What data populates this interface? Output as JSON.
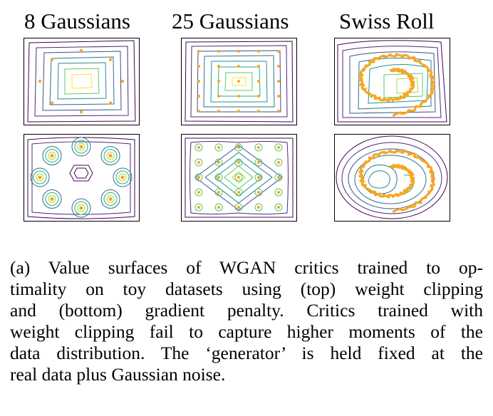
{
  "columns": [
    {
      "title": "8 Gaussians"
    },
    {
      "title": "25 Gaussians"
    },
    {
      "title": "Swiss Roll"
    }
  ],
  "rows": [
    "weight clipping",
    "gradient penalty"
  ],
  "caption": {
    "line1": "(a)  Value surfaces of WGAN critics trained to op-",
    "line2": "timality on toy datasets using (top) weight clipping",
    "line3": "and (bottom) gradient penalty.  Critics trained with",
    "line4": "weight clipping fail to capture higher moments of the",
    "line5": "data distribution. The ‘generator’ is held fixed at the",
    "line6": "real data plus Gaussian noise."
  },
  "colors": {
    "contour_levels": [
      "#440154",
      "#472c7a",
      "#3b518b",
      "#2c718e",
      "#21908d",
      "#27ad81",
      "#5cc863",
      "#aadc32",
      "#fde725"
    ],
    "samples": "#f5a623"
  }
}
